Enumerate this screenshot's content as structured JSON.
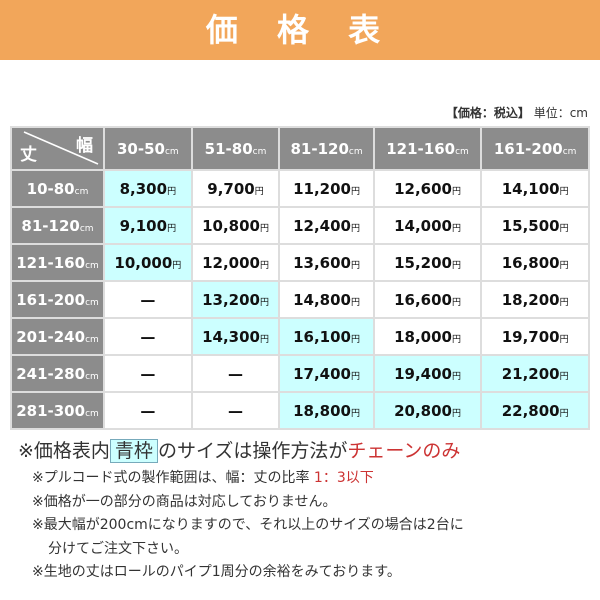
{
  "title": "価 格 表",
  "unit_note": {
    "label": "【価格：税込】",
    "unit": "単位：cm"
  },
  "corner": {
    "row_label": "丈",
    "col_label": "幅"
  },
  "columns": [
    "30-50",
    "51-80",
    "81-120",
    "121-160",
    "161-200"
  ],
  "unit_suffix": "cm",
  "yen": "円",
  "rows": [
    {
      "label": "10-80",
      "values": [
        "8,300",
        "9,700",
        "11,200",
        "12,600",
        "14,100"
      ],
      "highlight": [
        0
      ]
    },
    {
      "label": "81-120",
      "values": [
        "9,100",
        "10,800",
        "12,400",
        "14,000",
        "15,500"
      ],
      "highlight": [
        0
      ]
    },
    {
      "label": "121-160",
      "values": [
        "10,000",
        "12,000",
        "13,600",
        "15,200",
        "16,800"
      ],
      "highlight": [
        0
      ]
    },
    {
      "label": "161-200",
      "values": [
        "—",
        "13,200",
        "14,800",
        "16,600",
        "18,200"
      ],
      "highlight": [
        1
      ]
    },
    {
      "label": "201-240",
      "values": [
        "—",
        "14,300",
        "16,100",
        "18,000",
        "19,700"
      ],
      "highlight": [
        1,
        2
      ]
    },
    {
      "label": "241-280",
      "values": [
        "—",
        "—",
        "17,400",
        "19,400",
        "21,200"
      ],
      "highlight": [
        2,
        3,
        4
      ]
    },
    {
      "label": "281-300",
      "values": [
        "—",
        "—",
        "18,800",
        "20,800",
        "22,800"
      ],
      "highlight": [
        2,
        3,
        4
      ]
    }
  ],
  "colors": {
    "banner": "#f2a65a",
    "header": "#8c8c8c",
    "highlight": "#ccffff",
    "accent_red": "#cc3333"
  },
  "notes": {
    "main_pre": "※価格表内",
    "main_box": "青枠",
    "main_mid": "のサイズは操作方法が",
    "main_red": "チェーンのみ",
    "n1_pre": "※プルコード式の製作範囲は、幅：丈の比率",
    "n1_red": "1：3以下",
    "n2": "※価格が一の部分の商品は対応しておりません。",
    "n3": "※最大幅が200cmになりますので、それ以上のサイズの場合は2台に",
    "n3b": "分けてご注文下さい。",
    "n4": "※生地の丈はロールのパイプ1周分の余裕をみております。"
  }
}
